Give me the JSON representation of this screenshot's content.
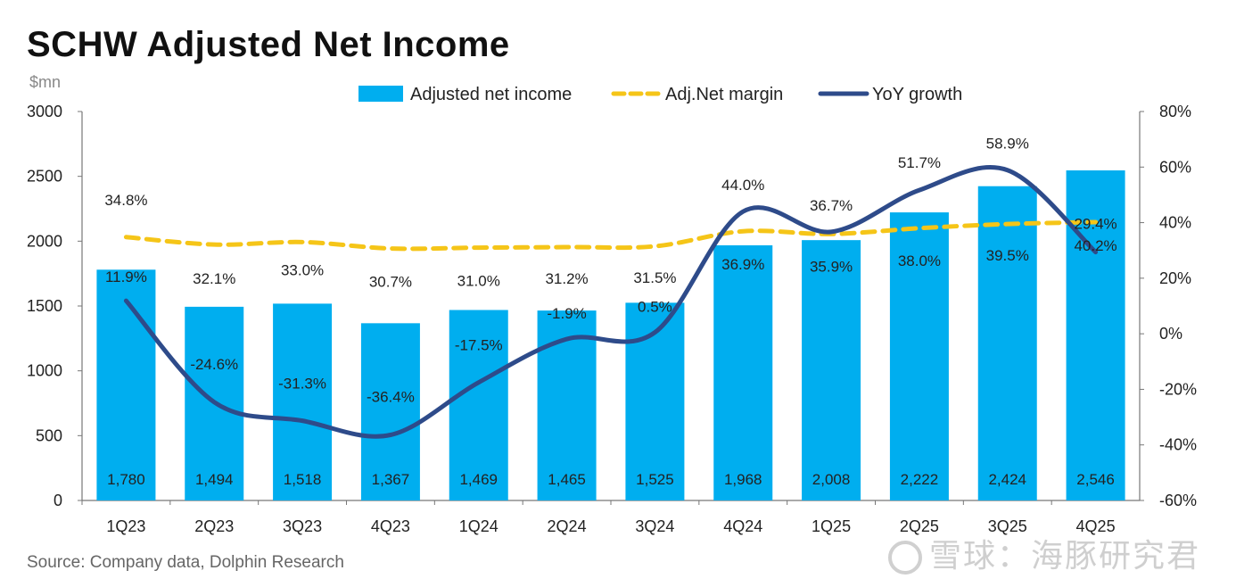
{
  "header": {
    "title": "SCHW Adjusted Net Income",
    "unit": "$mn"
  },
  "footer": {
    "source": "Source: Company data, Dolphin Research",
    "brand": "雪球：海豚研究君"
  },
  "colors": {
    "bar": "#00AEEF",
    "margin": "#F5C518",
    "growth": "#2E4B8A"
  },
  "chart_data": {
    "type": "bar",
    "categories": [
      "1Q23",
      "2Q23",
      "3Q23",
      "4Q23",
      "1Q24",
      "2Q24",
      "3Q24",
      "4Q24",
      "1Q25",
      "2Q25",
      "3Q25",
      "4Q25"
    ],
    "series": [
      {
        "name": "Adjusted net income",
        "type": "bar",
        "axis": "left",
        "values": [
          1780,
          1494,
          1518,
          1367,
          1469,
          1465,
          1525,
          1968,
          2008,
          2222,
          2424,
          2546
        ],
        "labels": [
          "1,780",
          "1,494",
          "1,518",
          "1,367",
          "1,469",
          "1,465",
          "1,525",
          "1,968",
          "2,008",
          "2,222",
          "2,424",
          "2,546"
        ]
      },
      {
        "name": "Adj.Net margin",
        "type": "line",
        "style": "dashed",
        "axis": "right",
        "values": [
          34.8,
          32.1,
          33.0,
          30.7,
          31.0,
          31.2,
          31.5,
          36.9,
          35.9,
          38.0,
          39.5,
          40.2
        ],
        "labels": [
          "34.8%",
          "32.1%",
          "33.0%",
          "30.7%",
          "31.0%",
          "31.2%",
          "31.5%",
          "36.9%",
          "35.9%",
          "38.0%",
          "39.5%",
          "40.2%"
        ]
      },
      {
        "name": "YoY growth",
        "type": "line",
        "style": "smooth",
        "axis": "right",
        "values": [
          11.9,
          -24.6,
          -31.3,
          -36.4,
          -17.5,
          -1.9,
          0.5,
          44.0,
          36.7,
          51.7,
          58.9,
          29.4
        ],
        "labels": [
          "11.9%",
          "-24.6%",
          "-31.3%",
          "-36.4%",
          "-17.5%",
          "-1.9%",
          "0.5%",
          "44.0%",
          "36.7%",
          "51.7%",
          "58.9%",
          "29.4%"
        ]
      }
    ],
    "yleft": {
      "min": 0,
      "max": 3000,
      "ticks": [
        "0",
        "500",
        "1000",
        "1500",
        "2000",
        "2500",
        "3000"
      ]
    },
    "yright": {
      "min": -60,
      "max": 80,
      "ticks": [
        "-60%",
        "-40%",
        "-20%",
        "0%",
        "20%",
        "40%",
        "60%",
        "80%"
      ]
    },
    "legend": "top",
    "grid": false
  }
}
